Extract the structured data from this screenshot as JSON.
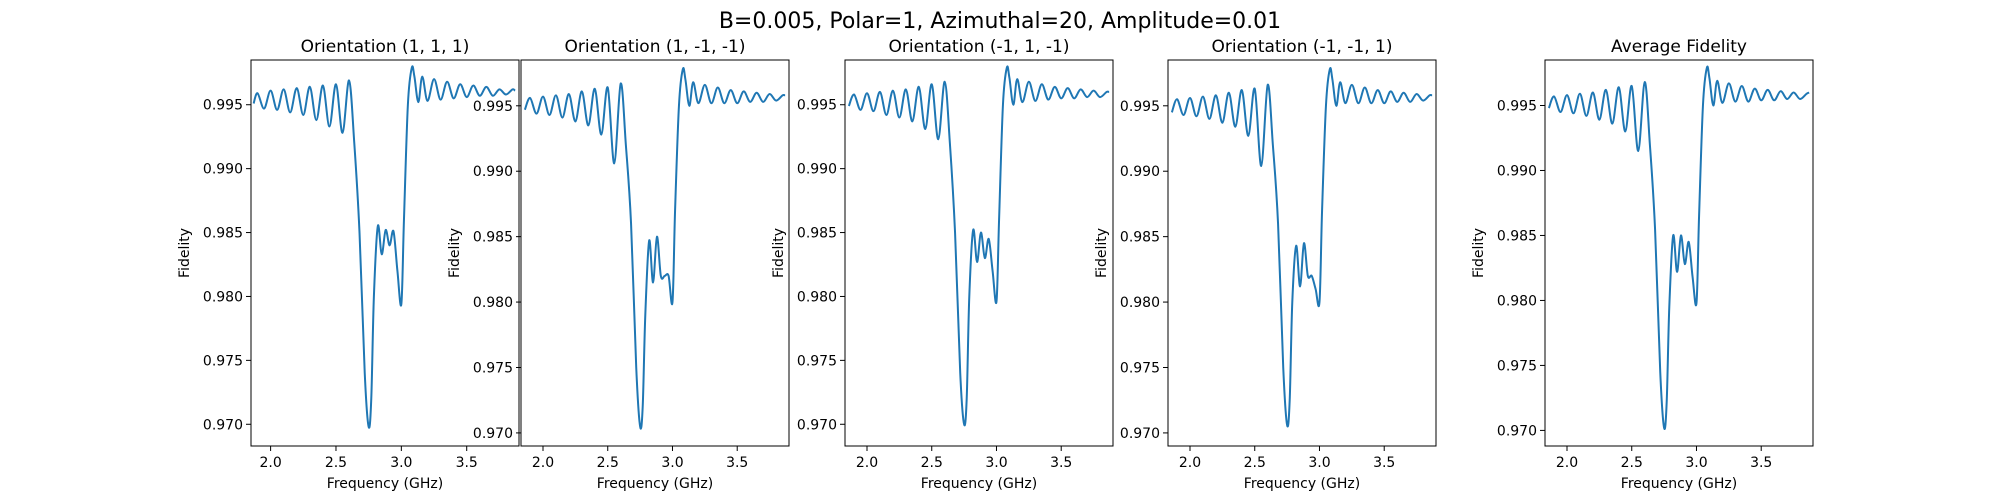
{
  "figure": {
    "suptitle": "B=0.005, Polar=1, Azimuthal=20, Amplitude=0.01",
    "line_color": "#1f77b4"
  },
  "chart_data": [
    {
      "type": "line",
      "title": "Orientation (1, 1, 1)",
      "xlabel": "Frequency (GHz)",
      "ylabel": "Fidelity",
      "xlim": [
        1.85,
        3.9
      ],
      "ylim": [
        0.9683,
        0.9985
      ],
      "xticks": [
        2.0,
        2.5,
        3.0,
        3.5
      ],
      "xtick_labels": [
        "2.0",
        "2.5",
        "3.0",
        "3.5"
      ],
      "yticks": [
        0.97,
        0.975,
        0.98,
        0.985,
        0.99,
        0.995
      ],
      "ytick_labels": [
        "0.970",
        "0.975",
        "0.980",
        "0.985",
        "0.990",
        "0.995"
      ],
      "series": [
        {
          "x": [
            1.87,
            1.9,
            1.95,
            2.0,
            2.05,
            2.1,
            2.15,
            2.2,
            2.25,
            2.3,
            2.35,
            2.4,
            2.45,
            2.5,
            2.55,
            2.6,
            2.64,
            2.68,
            2.72,
            2.75,
            2.77,
            2.79,
            2.82,
            2.85,
            2.88,
            2.91,
            2.94,
            2.97,
            3.0,
            3.02,
            3.05,
            3.08,
            3.1,
            3.13,
            3.16,
            3.2,
            3.25,
            3.3,
            3.35,
            3.4,
            3.45,
            3.5,
            3.55,
            3.6,
            3.65,
            3.7,
            3.75,
            3.8,
            3.85,
            3.87
          ],
          "y": [
            0.9951,
            0.9959,
            0.9947,
            0.9961,
            0.9946,
            0.9962,
            0.9944,
            0.9963,
            0.9942,
            0.9964,
            0.9938,
            0.9965,
            0.9933,
            0.9966,
            0.9928,
            0.9969,
            0.992,
            0.985,
            0.974,
            0.9698,
            0.972,
            0.98,
            0.9855,
            0.9833,
            0.9852,
            0.984,
            0.9851,
            0.982,
            0.9794,
            0.986,
            0.995,
            0.9979,
            0.9972,
            0.9952,
            0.9972,
            0.9953,
            0.997,
            0.9954,
            0.9968,
            0.9955,
            0.9966,
            0.9956,
            0.9965,
            0.9957,
            0.9964,
            0.9957,
            0.9962,
            0.9958,
            0.9962,
            0.9961
          ]
        }
      ]
    },
    {
      "type": "line",
      "title": "Orientation (1, -1, -1)",
      "xlabel": "Frequency (GHz)",
      "ylabel": "Fidelity",
      "xlim": [
        1.83,
        3.9
      ],
      "ylim": [
        0.969,
        0.9985
      ],
      "xticks": [
        2.0,
        2.5,
        3.0,
        3.5
      ],
      "xtick_labels": [
        "2.0",
        "2.5",
        "3.0",
        "3.5"
      ],
      "yticks": [
        0.97,
        0.975,
        0.98,
        0.985,
        0.99,
        0.995
      ],
      "ytick_labels": [
        "0.970",
        "0.975",
        "0.980",
        "0.985",
        "0.990",
        "0.995"
      ],
      "series": [
        {
          "x": [
            1.86,
            1.9,
            1.95,
            2.0,
            2.05,
            2.1,
            2.15,
            2.2,
            2.25,
            2.3,
            2.35,
            2.4,
            2.45,
            2.5,
            2.55,
            2.6,
            2.64,
            2.68,
            2.72,
            2.75,
            2.77,
            2.79,
            2.82,
            2.85,
            2.88,
            2.91,
            2.94,
            2.97,
            3.0,
            3.02,
            3.05,
            3.08,
            3.1,
            3.13,
            3.16,
            3.2,
            3.25,
            3.3,
            3.35,
            3.4,
            3.45,
            3.5,
            3.55,
            3.6,
            3.65,
            3.7,
            3.75,
            3.8,
            3.85,
            3.87
          ],
          "y": [
            0.9947,
            0.9956,
            0.9944,
            0.9957,
            0.9943,
            0.9958,
            0.9941,
            0.9959,
            0.9938,
            0.9961,
            0.9935,
            0.9963,
            0.9928,
            0.9964,
            0.9906,
            0.9967,
            0.992,
            0.986,
            0.975,
            0.9705,
            0.972,
            0.979,
            0.9847,
            0.9815,
            0.985,
            0.982,
            0.982,
            0.982,
            0.98,
            0.987,
            0.995,
            0.9978,
            0.997,
            0.995,
            0.9968,
            0.9952,
            0.9966,
            0.9952,
            0.9964,
            0.9952,
            0.9962,
            0.9952,
            0.9961,
            0.9953,
            0.996,
            0.9953,
            0.9959,
            0.9954,
            0.9958,
            0.9958
          ]
        }
      ]
    },
    {
      "type": "line",
      "title": "Orientation (-1, 1, -1)",
      "xlabel": "Frequency (GHz)",
      "ylabel": "Fidelity",
      "xlim": [
        1.83,
        3.9
      ],
      "ylim": [
        0.9683,
        0.9985
      ],
      "xticks": [
        2.0,
        2.5,
        3.0,
        3.5
      ],
      "xtick_labels": [
        "2.0",
        "2.5",
        "3.0",
        "3.5"
      ],
      "yticks": [
        0.97,
        0.975,
        0.98,
        0.985,
        0.99,
        0.995
      ],
      "ytick_labels": [
        "0.970",
        "0.975",
        "0.980",
        "0.985",
        "0.990",
        "0.995"
      ],
      "series": [
        {
          "x": [
            1.86,
            1.9,
            1.95,
            2.0,
            2.05,
            2.1,
            2.15,
            2.2,
            2.25,
            2.3,
            2.35,
            2.4,
            2.45,
            2.5,
            2.55,
            2.6,
            2.64,
            2.68,
            2.72,
            2.75,
            2.77,
            2.79,
            2.82,
            2.85,
            2.88,
            2.91,
            2.94,
            2.97,
            3.0,
            3.02,
            3.05,
            3.08,
            3.1,
            3.13,
            3.16,
            3.2,
            3.25,
            3.3,
            3.35,
            3.4,
            3.45,
            3.5,
            3.55,
            3.6,
            3.65,
            3.7,
            3.75,
            3.8,
            3.85,
            3.87
          ],
          "y": [
            0.9949,
            0.9958,
            0.9946,
            0.9959,
            0.9945,
            0.996,
            0.9942,
            0.9961,
            0.994,
            0.9962,
            0.9937,
            0.9964,
            0.9931,
            0.9966,
            0.9923,
            0.9968,
            0.992,
            0.985,
            0.974,
            0.97,
            0.972,
            0.98,
            0.9852,
            0.9827,
            0.985,
            0.983,
            0.9845,
            0.982,
            0.9796,
            0.986,
            0.995,
            0.9979,
            0.9971,
            0.995,
            0.997,
            0.9952,
            0.9968,
            0.9953,
            0.9966,
            0.9954,
            0.9964,
            0.9955,
            0.9963,
            0.9955,
            0.9962,
            0.9956,
            0.9961,
            0.9956,
            0.996,
            0.996
          ]
        }
      ]
    },
    {
      "type": "line",
      "title": "Orientation (-1, -1, 1)",
      "xlabel": "Frequency (GHz)",
      "ylabel": "Fidelity",
      "xlim": [
        1.83,
        3.9
      ],
      "ylim": [
        0.969,
        0.9985
      ],
      "xticks": [
        2.0,
        2.5,
        3.0,
        3.5
      ],
      "xtick_labels": [
        "2.0",
        "2.5",
        "3.0",
        "3.5"
      ],
      "yticks": [
        0.97,
        0.975,
        0.98,
        0.985,
        0.99,
        0.995
      ],
      "ytick_labels": [
        "0.970",
        "0.975",
        "0.980",
        "0.985",
        "0.990",
        "0.995"
      ],
      "series": [
        {
          "x": [
            1.86,
            1.9,
            1.95,
            2.0,
            2.05,
            2.1,
            2.15,
            2.2,
            2.25,
            2.3,
            2.35,
            2.4,
            2.45,
            2.5,
            2.55,
            2.6,
            2.64,
            2.68,
            2.72,
            2.75,
            2.77,
            2.79,
            2.82,
            2.85,
            2.88,
            2.91,
            2.94,
            2.97,
            3.0,
            3.02,
            3.05,
            3.08,
            3.1,
            3.13,
            3.16,
            3.2,
            3.25,
            3.3,
            3.35,
            3.4,
            3.45,
            3.5,
            3.55,
            3.6,
            3.65,
            3.7,
            3.75,
            3.8,
            3.85,
            3.87
          ],
          "y": [
            0.9945,
            0.9955,
            0.9943,
            0.9956,
            0.9942,
            0.9957,
            0.994,
            0.9958,
            0.9937,
            0.996,
            0.9934,
            0.9962,
            0.9927,
            0.9963,
            0.9904,
            0.9966,
            0.992,
            0.986,
            0.975,
            0.9706,
            0.9725,
            0.98,
            0.9843,
            0.9812,
            0.9845,
            0.982,
            0.982,
            0.981,
            0.98,
            0.987,
            0.995,
            0.9978,
            0.997,
            0.995,
            0.9968,
            0.9952,
            0.9966,
            0.9952,
            0.9964,
            0.9952,
            0.9962,
            0.9952,
            0.9961,
            0.9953,
            0.996,
            0.9953,
            0.9959,
            0.9954,
            0.9958,
            0.9958
          ]
        }
      ]
    },
    {
      "type": "line",
      "title": "Average Fidelity",
      "xlabel": "Frequency (GHz)",
      "ylabel": "Fidelity",
      "xlim": [
        1.83,
        3.9
      ],
      "ylim": [
        0.9688,
        0.9985
      ],
      "xticks": [
        2.0,
        2.5,
        3.0,
        3.5
      ],
      "xtick_labels": [
        "2.0",
        "2.5",
        "3.0",
        "3.5"
      ],
      "yticks": [
        0.97,
        0.975,
        0.98,
        0.985,
        0.99,
        0.995
      ],
      "ytick_labels": [
        "0.970",
        "0.975",
        "0.980",
        "0.985",
        "0.990",
        "0.995"
      ],
      "series": [
        {
          "x": [
            1.86,
            1.9,
            1.95,
            2.0,
            2.05,
            2.1,
            2.15,
            2.2,
            2.25,
            2.3,
            2.35,
            2.4,
            2.45,
            2.5,
            2.55,
            2.6,
            2.64,
            2.68,
            2.72,
            2.75,
            2.77,
            2.79,
            2.82,
            2.85,
            2.88,
            2.91,
            2.94,
            2.97,
            3.0,
            3.02,
            3.05,
            3.08,
            3.1,
            3.13,
            3.16,
            3.2,
            3.25,
            3.3,
            3.35,
            3.4,
            3.45,
            3.5,
            3.55,
            3.6,
            3.65,
            3.7,
            3.75,
            3.8,
            3.85,
            3.87
          ],
          "y": [
            0.9948,
            0.9957,
            0.9945,
            0.9958,
            0.9944,
            0.9959,
            0.9942,
            0.996,
            0.9939,
            0.9962,
            0.9936,
            0.9964,
            0.993,
            0.9965,
            0.9915,
            0.9968,
            0.992,
            0.9855,
            0.9745,
            0.9702,
            0.9722,
            0.9795,
            0.985,
            0.9822,
            0.985,
            0.9828,
            0.9845,
            0.9818,
            0.9798,
            0.9865,
            0.995,
            0.9979,
            0.9971,
            0.995,
            0.9969,
            0.9952,
            0.9967,
            0.9953,
            0.9965,
            0.9953,
            0.9963,
            0.9954,
            0.9962,
            0.9954,
            0.9961,
            0.9955,
            0.996,
            0.9955,
            0.9959,
            0.996
          ]
        }
      ]
    }
  ]
}
